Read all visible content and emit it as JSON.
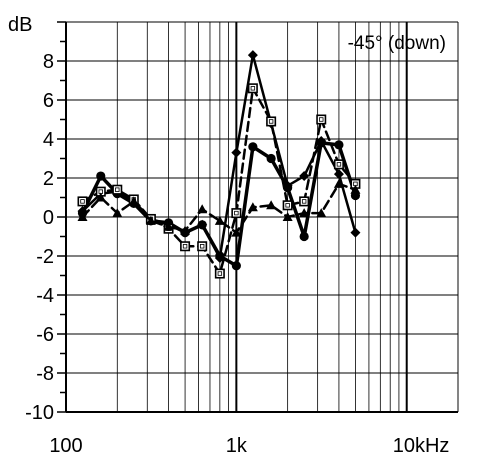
{
  "chart_data": {
    "type": "line",
    "ylabel": "dB",
    "xscale": "log",
    "xlim": [
      100,
      20000
    ],
    "ylim": [
      -10,
      10
    ],
    "grid": true,
    "annotation": "-45° (down)",
    "x_tick_labels": [
      {
        "value": 100,
        "label": "100"
      },
      {
        "value": 1000,
        "label": "1k"
      },
      {
        "value": 10000,
        "label": "10kHz"
      }
    ],
    "y_tick_labels": [
      "-10",
      "-8",
      "-6",
      "-4",
      "-2",
      "0",
      "2",
      "4",
      "6",
      "8"
    ],
    "x": [
      125,
      160,
      200,
      250,
      315,
      400,
      500,
      630,
      800,
      1000,
      1250,
      1600,
      2000,
      2500,
      3150,
      4000,
      5000
    ],
    "series": [
      {
        "marker": "diamond",
        "line": "solid",
        "width": 2.5,
        "values": [
          0.3,
          1.2,
          1.3,
          0.8,
          -0.1,
          -0.4,
          -0.8,
          -0.4,
          -2.1,
          3.3,
          8.3,
          4.8,
          1.6,
          2.1,
          3.9,
          2.2,
          -0.8
        ]
      },
      {
        "marker": "circle",
        "line": "solid",
        "width": 3.5,
        "values": [
          0.2,
          2.1,
          1.2,
          0.7,
          -0.2,
          -0.3,
          -0.8,
          -0.4,
          -2.0,
          -2.5,
          3.6,
          3.0,
          1.5,
          -1.0,
          3.8,
          3.7,
          1.1
        ]
      },
      {
        "marker": "square",
        "line": "dashed",
        "width": 2.5,
        "values": [
          0.8,
          1.3,
          1.4,
          0.9,
          -0.1,
          -0.6,
          -1.5,
          -1.5,
          -2.9,
          0.2,
          6.6,
          4.9,
          0.6,
          0.8,
          5.0,
          2.7,
          1.7
        ]
      },
      {
        "marker": "triangle",
        "line": "dashed",
        "width": 2.5,
        "values": [
          0.0,
          1.0,
          0.2,
          0.8,
          -0.2,
          -0.5,
          -0.7,
          0.4,
          -0.2,
          -0.8,
          0.5,
          0.6,
          0.0,
          0.2,
          0.2,
          1.7,
          1.4
        ]
      }
    ]
  }
}
